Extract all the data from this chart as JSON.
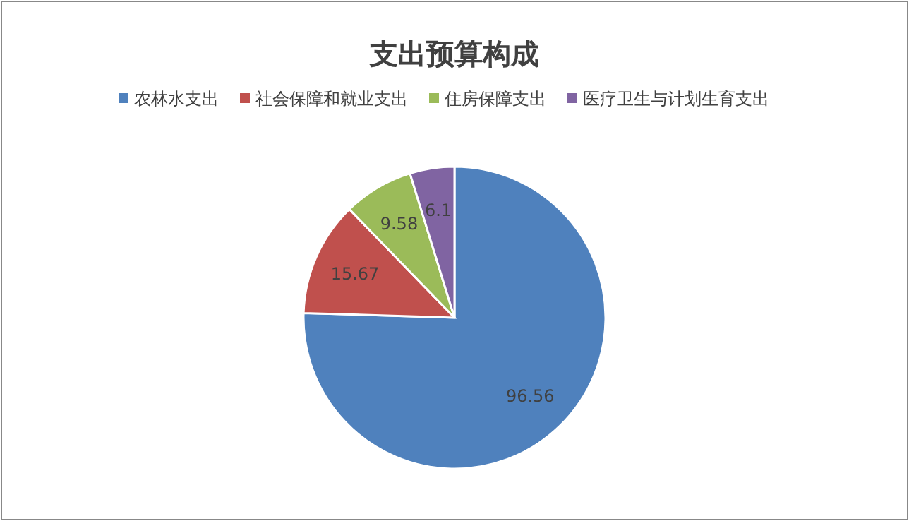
{
  "chart_data": {
    "type": "pie",
    "title": "支出预算构成",
    "categories": [
      "农林水支出",
      "社会保障和就业支出",
      "住房保障支出",
      "医疗卫生与计划生育支出"
    ],
    "values": [
      96.56,
      15.67,
      9.58,
      6.1
    ],
    "colors": [
      "#4f81bd",
      "#c0504d",
      "#9bbb59",
      "#8064a2"
    ],
    "data_labels": true,
    "legend": "top"
  }
}
